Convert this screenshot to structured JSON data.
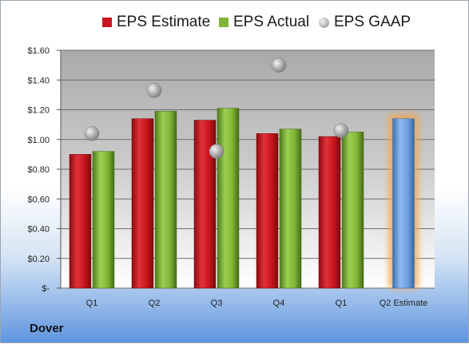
{
  "legend": {
    "estimate": "EPS Estimate",
    "actual": "EPS Actual",
    "gaap": "EPS GAAP"
  },
  "company": "Dover",
  "colors": {
    "estimate": "#c8141c",
    "actual": "#7fb535",
    "gaap": "#a8a8a8",
    "future_estimate": "#6fa0dc",
    "highlight": "#f5a64a"
  },
  "chart_data": {
    "type": "bar",
    "categories": [
      "Q1",
      "Q2",
      "Q3",
      "Q4",
      "Q1",
      "Q2 Estimate"
    ],
    "series": [
      {
        "name": "EPS Estimate",
        "values": [
          0.9,
          1.14,
          1.13,
          1.04,
          1.02,
          1.14
        ]
      },
      {
        "name": "EPS Actual",
        "values": [
          0.92,
          1.19,
          1.21,
          1.07,
          1.05,
          null
        ]
      },
      {
        "name": "EPS GAAP",
        "values": [
          1.04,
          1.33,
          0.92,
          1.5,
          1.06,
          null
        ]
      }
    ],
    "y_ticks": [
      "$-",
      "$0.20",
      "$0.40",
      "$0.60",
      "$0.80",
      "$1.00",
      "$1.20",
      "$1.40",
      "$1.60"
    ],
    "ylim": [
      0,
      1.6
    ],
    "grid": true,
    "legend_position": "top"
  }
}
